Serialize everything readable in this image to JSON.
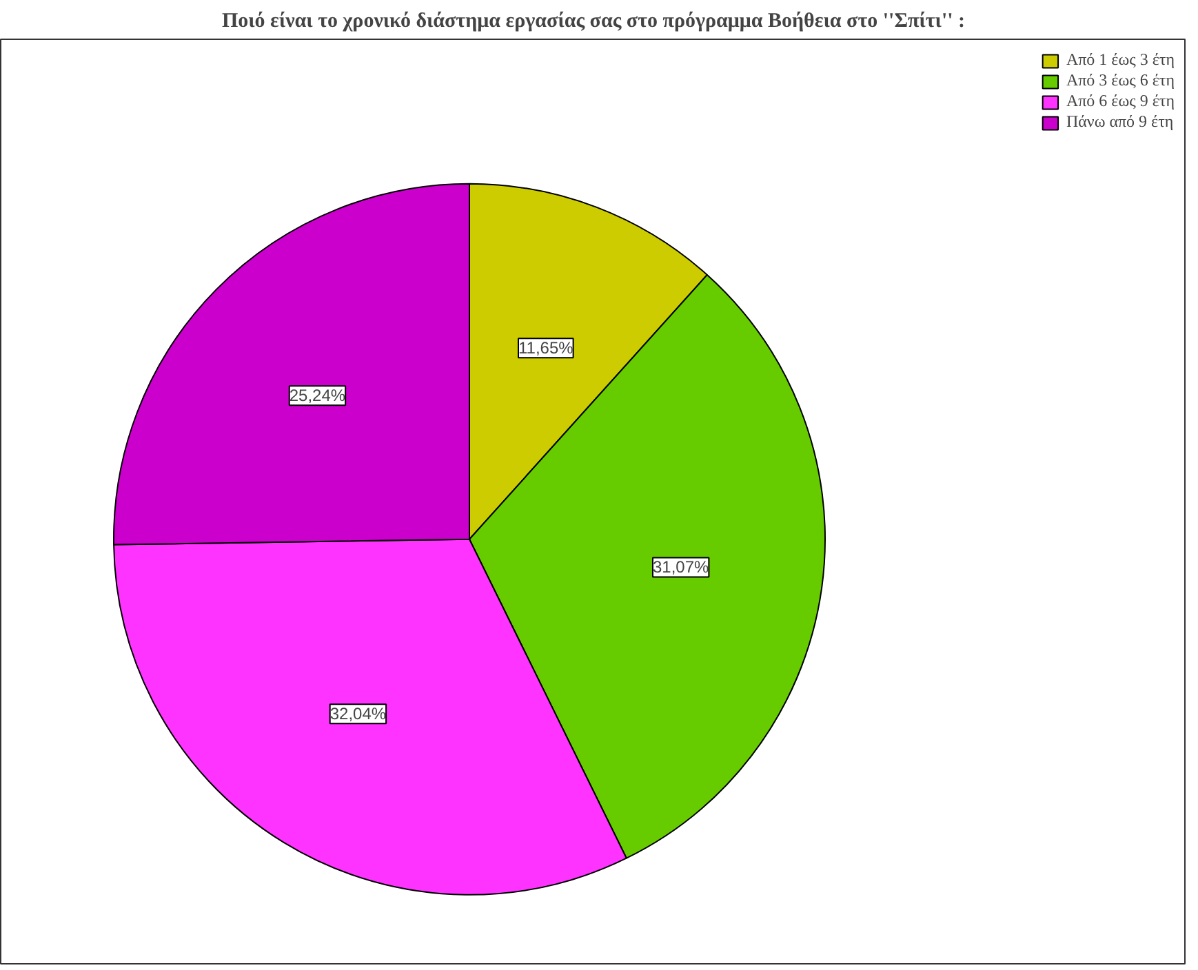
{
  "chart_data": {
    "type": "pie",
    "title": "Ποιό είναι το χρονικό διάστημα εργασίας σας στο πρόγραμμα Βοήθεια στο ''Σπίτι'' :",
    "categories": [
      "Από 1 έως 3 έτη",
      "Από 3 έως 6 έτη",
      "Από 6 έως 9 έτη",
      "Πάνω από 9 έτη"
    ],
    "values": [
      11.65,
      31.07,
      32.04,
      25.24
    ],
    "colors": [
      "#cccc00",
      "#66cc00",
      "#ff33ff",
      "#cc00cc"
    ],
    "value_labels": [
      "11,65%",
      "31,07%",
      "32,04%",
      "25,24%"
    ],
    "legend": "top right"
  }
}
